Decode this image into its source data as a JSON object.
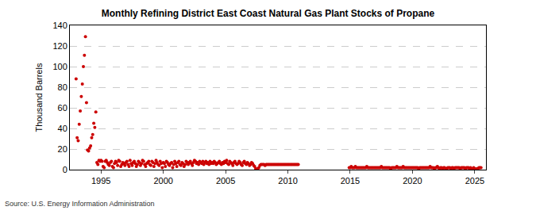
{
  "chart_data": {
    "type": "scatter",
    "title": "Monthly Refining District East Coast Natural Gas Plant Stocks of Propane",
    "y_label": "Thousand Barrels",
    "annotations": [
      "Source: U.S. Energy Information Administration"
    ],
    "color": "#cc0000",
    "marker": "circle",
    "grid": true,
    "xlim": [
      1992.5,
      2025.9
    ],
    "xticks": [
      1995,
      2000,
      2005,
      2010,
      2015,
      2020,
      2025
    ],
    "ylim": [
      0,
      140
    ],
    "yticks": [
      0,
      20,
      40,
      60,
      80,
      100,
      120,
      140
    ],
    "x": [
      1993,
      1993.083,
      1993.167,
      1993.25,
      1993.333,
      1993.417,
      1993.5,
      1993.583,
      1993.667,
      1993.75,
      1993.833,
      1993.917,
      1994,
      1994.083,
      1994.167,
      1994.25,
      1994.333,
      1994.417,
      1994.5,
      1994.583,
      1994.667,
      1994.75,
      1994.833,
      1994.917,
      1995,
      1995.083,
      1995.167,
      1995.25,
      1995.333,
      1995.417,
      1995.5,
      1995.583,
      1995.667,
      1995.75,
      1995.833,
      1995.917,
      1996,
      1996.083,
      1996.167,
      1996.25,
      1996.333,
      1996.417,
      1996.5,
      1996.583,
      1996.667,
      1996.75,
      1996.833,
      1996.917,
      1997,
      1997.083,
      1997.167,
      1997.25,
      1997.333,
      1997.417,
      1997.5,
      1997.583,
      1997.667,
      1997.75,
      1997.833,
      1997.917,
      1998,
      1998.083,
      1998.167,
      1998.25,
      1998.333,
      1998.417,
      1998.5,
      1998.583,
      1998.667,
      1998.75,
      1998.833,
      1998.917,
      1999,
      1999.083,
      1999.167,
      1999.25,
      1999.333,
      1999.417,
      1999.5,
      1999.583,
      1999.667,
      1999.75,
      1999.833,
      1999.917,
      2000,
      2000.083,
      2000.167,
      2000.25,
      2000.333,
      2000.417,
      2000.5,
      2000.583,
      2000.667,
      2000.75,
      2000.833,
      2000.917,
      2001,
      2001.083,
      2001.167,
      2001.25,
      2001.333,
      2001.417,
      2001.5,
      2001.583,
      2001.667,
      2001.75,
      2001.833,
      2001.917,
      2002,
      2002.083,
      2002.167,
      2002.25,
      2002.333,
      2002.417,
      2002.5,
      2002.583,
      2002.667,
      2002.75,
      2002.833,
      2002.917,
      2003,
      2003.083,
      2003.167,
      2003.25,
      2003.333,
      2003.417,
      2003.5,
      2003.583,
      2003.667,
      2003.75,
      2003.833,
      2003.917,
      2004,
      2004.083,
      2004.167,
      2004.25,
      2004.333,
      2004.417,
      2004.5,
      2004.583,
      2004.667,
      2004.75,
      2004.833,
      2004.917,
      2005,
      2005.083,
      2005.167,
      2005.25,
      2005.333,
      2005.417,
      2005.5,
      2005.583,
      2005.667,
      2005.75,
      2005.833,
      2005.917,
      2006,
      2006.083,
      2006.167,
      2006.25,
      2006.333,
      2006.417,
      2006.5,
      2006.583,
      2006.667,
      2006.75,
      2006.833,
      2006.917,
      2007,
      2007.083,
      2007.167,
      2007.25,
      2007.333,
      2007.417,
      2007.5,
      2007.583,
      2007.667,
      2007.75,
      2007.833,
      2007.917,
      2008,
      2008.083,
      2008.167,
      2008.25,
      2008.333,
      2008.417,
      2008.5,
      2008.583,
      2008.667,
      2008.75,
      2008.833,
      2008.917,
      2009,
      2009.083,
      2009.167,
      2009.25,
      2009.333,
      2009.417,
      2009.5,
      2009.583,
      2009.667,
      2009.75,
      2009.833,
      2009.917,
      2010,
      2010.083,
      2010.167,
      2010.25,
      2010.333,
      2010.417,
      2010.5,
      2010.583,
      2010.667,
      2010.75,
      2010.833,
      2014.917,
      2015,
      2015.083,
      2015.167,
      2015.25,
      2015.333,
      2015.417,
      2015.5,
      2015.583,
      2015.667,
      2015.75,
      2015.833,
      2015.917,
      2016,
      2016.083,
      2016.167,
      2016.25,
      2016.333,
      2016.417,
      2016.5,
      2016.583,
      2016.667,
      2016.75,
      2016.833,
      2016.917,
      2017,
      2017.083,
      2017.167,
      2017.25,
      2017.333,
      2017.417,
      2017.5,
      2017.583,
      2017.667,
      2017.75,
      2017.833,
      2017.917,
      2018,
      2018.083,
      2018.167,
      2018.25,
      2018.333,
      2018.417,
      2018.5,
      2018.583,
      2018.667,
      2018.75,
      2018.833,
      2018.917,
      2019,
      2019.083,
      2019.167,
      2019.25,
      2019.333,
      2019.417,
      2019.5,
      2019.583,
      2019.667,
      2019.75,
      2019.833,
      2019.917,
      2020,
      2020.083,
      2020.167,
      2020.25,
      2020.333,
      2020.417,
      2020.5,
      2020.583,
      2020.667,
      2020.75,
      2020.833,
      2020.917,
      2021,
      2021.083,
      2021.167,
      2021.25,
      2021.333,
      2021.417,
      2021.5,
      2021.583,
      2021.667,
      2021.75,
      2021.833,
      2021.917,
      2022,
      2022.083,
      2022.167,
      2022.25,
      2022.333,
      2022.417,
      2022.5,
      2022.583,
      2022.667,
      2022.75,
      2022.833,
      2022.917,
      2023,
      2023.083,
      2023.167,
      2023.25,
      2023.333,
      2023.417,
      2023.5,
      2023.583,
      2023.667,
      2023.75,
      2023.833,
      2023.917,
      2024,
      2024.083,
      2024.167,
      2024.25,
      2024.333,
      2024.417,
      2024.5,
      2024.583,
      2024.667,
      2024.75,
      2024.833,
      2024.917,
      2025,
      2025.083,
      2025.167,
      2025.25,
      2025.333,
      2025.417,
      2025.5
    ],
    "values": [
      88,
      31,
      28,
      44,
      57,
      71,
      83,
      100,
      111,
      129,
      65,
      19,
      18,
      21,
      23,
      31,
      34,
      45,
      41,
      56,
      7,
      5,
      9,
      8,
      9,
      8,
      3,
      2,
      8,
      9,
      7,
      5,
      4,
      7,
      8,
      3,
      2,
      6,
      8,
      7,
      4,
      9,
      8,
      3,
      5,
      7,
      6,
      4,
      7,
      8,
      5,
      3,
      9,
      6,
      4,
      7,
      8,
      6,
      3,
      5,
      8,
      7,
      4,
      6,
      9,
      8,
      5,
      3,
      6,
      7,
      8,
      5,
      4,
      8,
      7,
      3,
      6,
      9,
      7,
      5,
      4,
      8,
      6,
      2,
      7,
      6,
      3,
      8,
      7,
      5,
      4,
      6,
      7,
      2,
      5,
      8,
      6,
      3,
      7,
      8,
      5,
      4,
      7,
      6,
      3,
      5,
      8,
      7,
      5,
      7,
      8,
      6,
      4,
      7,
      9,
      8,
      6,
      7,
      5,
      8,
      7,
      6,
      8,
      5,
      7,
      8,
      6,
      7,
      5,
      8,
      6,
      7,
      6,
      8,
      7,
      5,
      6,
      7,
      8,
      6,
      5,
      7,
      6,
      8,
      7,
      9,
      6,
      5,
      8,
      7,
      6,
      4,
      7,
      8,
      6,
      5,
      6,
      8,
      7,
      5,
      4,
      7,
      8,
      6,
      5,
      7,
      6,
      4,
      5,
      7,
      6,
      4,
      3,
      1,
      0,
      1,
      2,
      4,
      5,
      5,
      5,
      5,
      4,
      5,
      5,
      5,
      5,
      5,
      5,
      5,
      5,
      5,
      5,
      5,
      5,
      5,
      5,
      5,
      5,
      5,
      5,
      5,
      5,
      5,
      5,
      5,
      5,
      5,
      5,
      5,
      5,
      5,
      5,
      5,
      5,
      2,
      2,
      3,
      2,
      2,
      2,
      3,
      2,
      2,
      2,
      2,
      2,
      2,
      2,
      2,
      2,
      2,
      3,
      2,
      2,
      2,
      2,
      2,
      2,
      2,
      2,
      2,
      2,
      2,
      2,
      2,
      3,
      2,
      2,
      2,
      2,
      2,
      2,
      2,
      2,
      1,
      2,
      2,
      2,
      2,
      2,
      3,
      2,
      2,
      2,
      2,
      2,
      3,
      2,
      2,
      2,
      2,
      2,
      2,
      2,
      2,
      2,
      2,
      2,
      2,
      2,
      2,
      1,
      2,
      2,
      2,
      2,
      2,
      2,
      2,
      2,
      2,
      2,
      3,
      2,
      2,
      2,
      1,
      2,
      2,
      3,
      2,
      1,
      2,
      2,
      1,
      2,
      2,
      1,
      1,
      2,
      2,
      2,
      1,
      2,
      2,
      1,
      2,
      2,
      2,
      2,
      2,
      1,
      2,
      2,
      2,
      2,
      1,
      2,
      2,
      2,
      1,
      2,
      1,
      1,
      2,
      1,
      0,
      1,
      1,
      2,
      2,
      2
    ]
  }
}
